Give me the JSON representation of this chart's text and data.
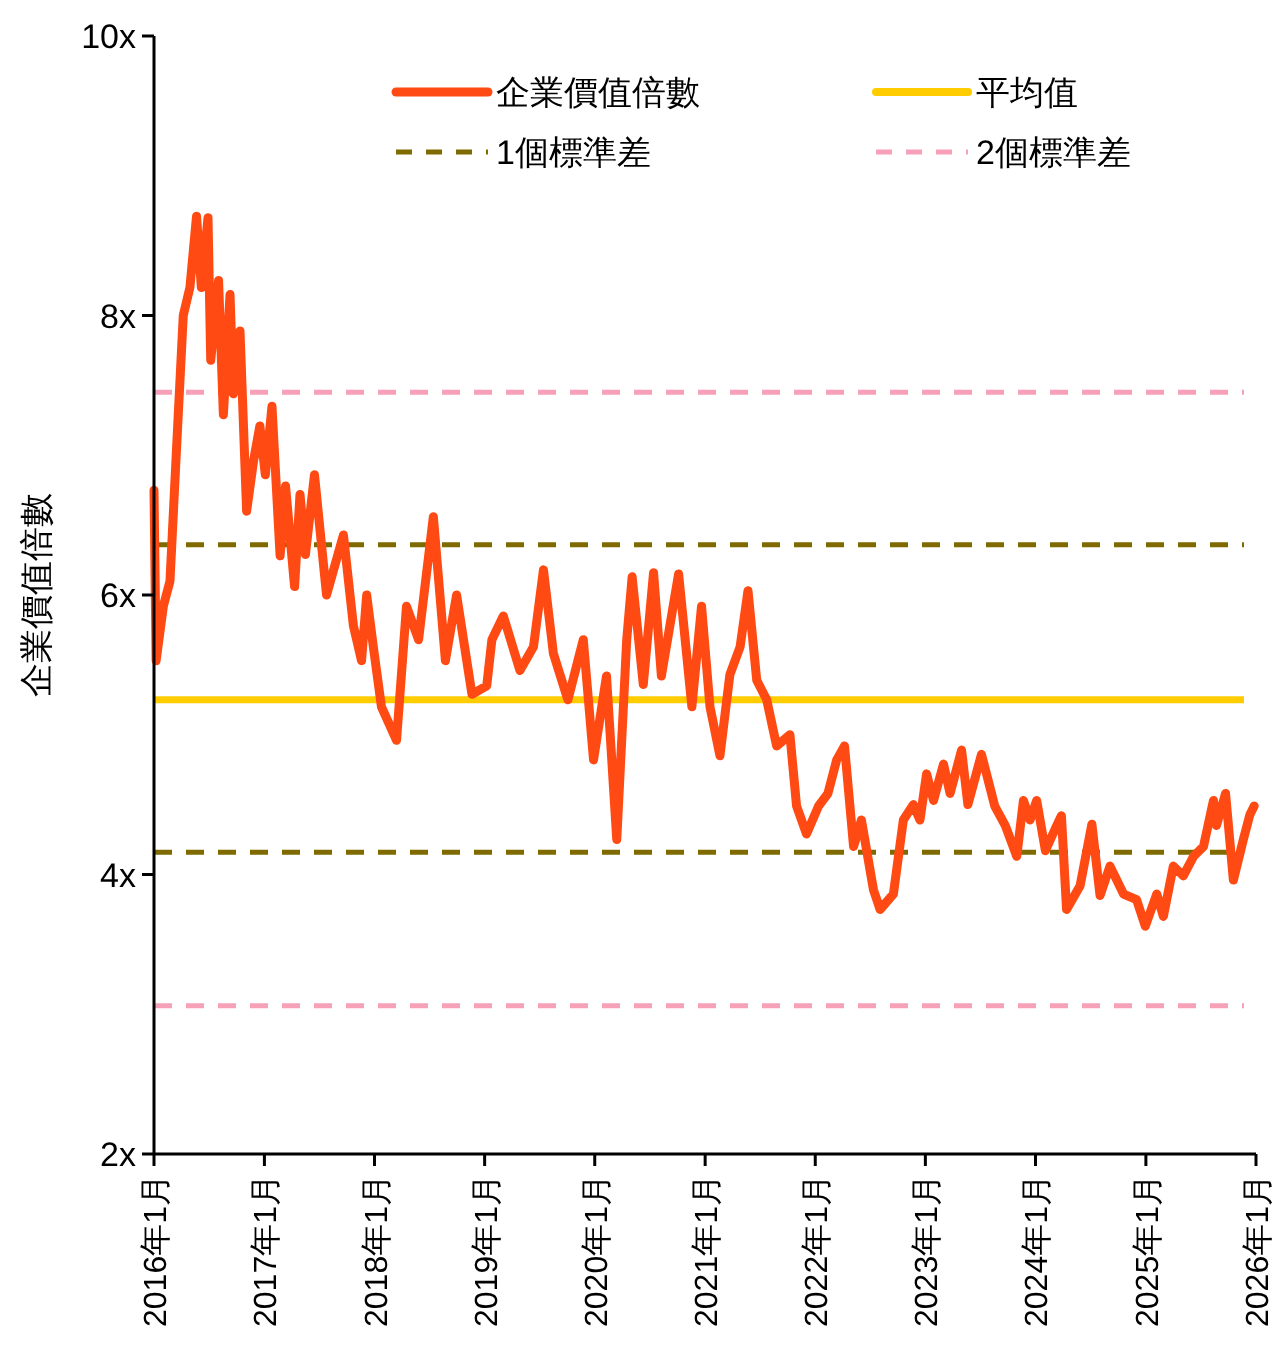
{
  "chart_data": {
    "type": "line",
    "ylabel": "企業價值倍數",
    "legend": "top",
    "xlim": [
      "2016-01",
      "2026-01"
    ],
    "xticks": [
      {
        "value": "2016-01",
        "label": "2016年1月"
      },
      {
        "value": "2017-01",
        "label": "2017年1月"
      },
      {
        "value": "2018-01",
        "label": "2018年1月"
      },
      {
        "value": "2019-01",
        "label": "2019年1月"
      },
      {
        "value": "2020-01",
        "label": "2020年1月"
      },
      {
        "value": "2021-01",
        "label": "2021年1月"
      },
      {
        "value": "2022-01",
        "label": "2022年1月"
      },
      {
        "value": "2023-01",
        "label": "2023年1月"
      },
      {
        "value": "2024-01",
        "label": "2024年1月"
      },
      {
        "value": "2025-01",
        "label": "2025年1月"
      },
      {
        "value": "2026-01",
        "label": "2026年1月"
      }
    ],
    "ylim": [
      2,
      10
    ],
    "yticks": [
      {
        "value": 2,
        "label": "2x"
      },
      {
        "value": 4,
        "label": "4x"
      },
      {
        "value": 6,
        "label": "6x"
      },
      {
        "value": 8,
        "label": "8x"
      },
      {
        "value": 10,
        "label": "10x"
      }
    ],
    "ref_lines": [
      {
        "axis": "y",
        "value": 5.25,
        "label": "平均值",
        "color": "#ffcc00",
        "line_style": "solid"
      },
      {
        "axis": "y",
        "value": 6.36,
        "label": "1個標準差",
        "color": "#7f6a00",
        "line_style": "dashed"
      },
      {
        "axis": "y",
        "value": 4.16,
        "color": "#7f6a00",
        "line_style": "dashed"
      },
      {
        "axis": "y",
        "value": 7.45,
        "label": "2個標準差",
        "color": "#f7a1b9",
        "line_style": "dashed"
      },
      {
        "axis": "y",
        "value": 3.06,
        "color": "#f7a1b9",
        "line_style": "dashed"
      }
    ],
    "series": [
      {
        "name": "企業價值倍數",
        "color": "#ff4a14",
        "x": [
          "2016-01-01",
          "2016-01-08",
          "2016-02-01",
          "2016-02-23",
          "2016-03-16",
          "2016-04-07",
          "2016-04-29",
          "2016-05-21",
          "2016-06-06",
          "2016-06-28",
          "2016-07-07",
          "2016-08-02",
          "2016-08-18",
          "2016-09-09",
          "2016-09-20",
          "2016-10-12",
          "2016-11-03",
          "2016-11-26",
          "2016-12-17",
          "2017-01-04",
          "2017-01-26",
          "2017-02-22",
          "2017-03-12",
          "2017-04-11",
          "2017-04-29",
          "2017-05-17",
          "2017-06-16",
          "2017-07-26",
          "2017-09-20",
          "2017-10-23",
          "2017-11-19",
          "2017-12-06",
          "2017-12-28",
          "2018-01-24",
          "2018-03-15",
          "2018-04-17",
          "2018-05-27",
          "2018-07-15",
          "2018-08-24",
          "2018-09-30",
          "2018-11-20",
          "2019-01-08",
          "2019-01-25",
          "2019-03-04",
          "2019-04-28",
          "2019-06-12",
          "2019-07-15",
          "2019-08-17",
          "2019-10-04",
          "2019-11-24",
          "2019-12-28",
          "2020-02-09",
          "2020-03-14",
          "2020-04-16",
          "2020-05-04",
          "2020-06-10",
          "2020-07-14",
          "2020-08-09",
          "2020-10-05",
          "2020-11-18",
          "2020-12-20",
          "2021-01-17",
          "2021-02-19",
          "2021-03-24",
          "2021-04-27",
          "2021-05-23",
          "2021-06-21",
          "2021-07-24",
          "2021-08-26",
          "2021-10-09",
          "2021-10-31",
          "2021-12-03",
          "2022-01-12",
          "2022-02-12",
          "2022-03-13",
          "2022-04-08",
          "2022-05-08",
          "2022-06-03",
          "2022-07-13",
          "2022-08-04",
          "2022-09-17",
          "2022-10-20",
          "2022-11-22",
          "2022-12-14",
          "2023-01-05",
          "2023-01-28",
          "2023-03-02",
          "2023-03-24",
          "2023-05-01",
          "2023-05-22",
          "2023-07-06",
          "2023-08-19",
          "2023-09-23",
          "2023-10-31",
          "2023-11-22",
          "2023-12-14",
          "2024-01-05",
          "2024-02-03",
          "2024-03-05",
          "2024-03-27",
          "2024-04-13",
          "2024-05-28",
          "2024-07-06",
          "2024-08-02",
          "2024-09-04",
          "2024-10-19",
          "2024-12-01",
          "2024-12-30",
          "2025-02-06",
          "2025-02-28",
          "2025-04-02",
          "2025-05-05",
          "2025-06-08",
          "2025-07-11",
          "2025-08-13",
          "2025-08-23",
          "2025-09-22",
          "2025-10-18",
          "2025-11-20",
          "2025-12-12",
          "2025-12-26"
        ],
        "values": [
          6.75,
          5.53,
          5.92,
          6.1,
          7.06,
          8.0,
          8.2,
          8.71,
          8.2,
          8.7,
          7.68,
          8.25,
          7.29,
          8.15,
          7.44,
          7.89,
          6.6,
          6.96,
          7.21,
          6.86,
          7.35,
          6.28,
          6.78,
          6.06,
          6.72,
          6.29,
          6.86,
          6.0,
          6.43,
          5.78,
          5.53,
          6.0,
          5.63,
          5.2,
          4.96,
          5.92,
          5.68,
          6.56,
          5.53,
          6.0,
          5.29,
          5.35,
          5.68,
          5.85,
          5.46,
          5.63,
          6.18,
          5.58,
          5.25,
          5.68,
          4.82,
          5.42,
          4.25,
          5.68,
          6.13,
          5.36,
          6.16,
          5.42,
          6.15,
          5.2,
          5.92,
          5.2,
          4.85,
          5.43,
          5.63,
          6.03,
          5.39,
          5.25,
          4.92,
          5.0,
          4.49,
          4.29,
          4.49,
          4.58,
          4.82,
          4.92,
          4.2,
          4.39,
          3.89,
          3.75,
          3.86,
          4.39,
          4.5,
          4.39,
          4.72,
          4.53,
          4.79,
          4.58,
          4.89,
          4.5,
          4.86,
          4.49,
          4.35,
          4.13,
          4.53,
          4.39,
          4.53,
          4.17,
          4.32,
          4.42,
          3.75,
          3.92,
          4.36,
          3.85,
          4.06,
          3.86,
          3.82,
          3.63,
          3.86,
          3.7,
          4.06,
          3.99,
          4.13,
          4.2,
          4.53,
          4.35,
          4.58,
          3.96,
          4.25,
          4.43,
          4.49
        ]
      }
    ]
  }
}
